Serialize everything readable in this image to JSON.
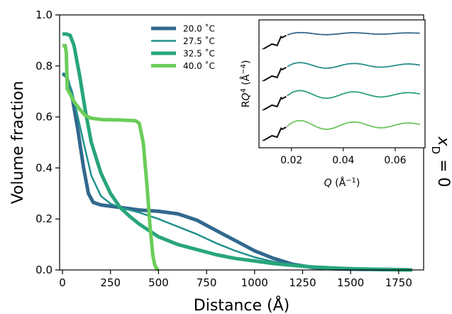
{
  "chart_data": [
    {
      "type": "line",
      "xlabel": "Distance (Å)",
      "ylabel": "Volume fraction",
      "xlim": [
        -15,
        1880
      ],
      "ylim": [
        0,
        1.0
      ],
      "xticks": [
        0,
        250,
        500,
        750,
        1000,
        1250,
        1500,
        1750
      ],
      "xtick_labels": [
        "0",
        "250",
        "500",
        "750",
        "1000",
        "1250",
        "1500",
        "1750"
      ],
      "yticks": [
        0,
        0.2,
        0.4,
        0.6,
        0.8,
        1.0
      ],
      "ytick_labels": [
        "0.0",
        "0.2",
        "0.4",
        "0.6",
        "0.8",
        "1.0"
      ],
      "legend_position": "top-center",
      "side_label": "x",
      "side_label_sub": "D",
      "side_label_value": " = 0",
      "series": [
        {
          "name": "20.0 ˚C",
          "color": "#31688e",
          "width": 5,
          "x": [
            0,
            20,
            50,
            80,
            110,
            135,
            160,
            200,
            300,
            400,
            500,
            600,
            700,
            800,
            900,
            1000,
            1100,
            1200,
            1300,
            1400,
            1500,
            1600,
            1700,
            1820
          ],
          "y": [
            0.77,
            0.76,
            0.68,
            0.55,
            0.4,
            0.3,
            0.265,
            0.255,
            0.245,
            0.235,
            0.23,
            0.22,
            0.195,
            0.155,
            0.115,
            0.075,
            0.045,
            0.022,
            0.01,
            0.005,
            0.003,
            0.002,
            0.001,
            0.0
          ]
        },
        {
          "name": "27.5 ˚C",
          "color": "#21918c",
          "width": 2.5,
          "x": [
            0,
            20,
            50,
            80,
            110,
            150,
            200,
            250,
            300,
            400,
            500,
            600,
            700,
            800,
            900,
            1000,
            1100,
            1200,
            1300,
            1400,
            1500,
            1600,
            1700,
            1820
          ],
          "y": [
            0.77,
            0.76,
            0.7,
            0.6,
            0.5,
            0.37,
            0.29,
            0.26,
            0.245,
            0.225,
            0.2,
            0.17,
            0.14,
            0.105,
            0.075,
            0.05,
            0.032,
            0.018,
            0.01,
            0.005,
            0.003,
            0.002,
            0.001,
            0.0
          ]
        },
        {
          "name": "32.5 ˚C",
          "color": "#27a57b",
          "width": 5,
          "x": [
            0,
            20,
            40,
            60,
            90,
            120,
            150,
            200,
            250,
            300,
            350,
            400,
            450,
            500,
            600,
            700,
            800,
            900,
            1000,
            1100,
            1200,
            1300,
            1400,
            1500,
            1600,
            1700,
            1820
          ],
          "y": [
            0.925,
            0.925,
            0.92,
            0.88,
            0.76,
            0.62,
            0.5,
            0.38,
            0.3,
            0.245,
            0.21,
            0.18,
            0.155,
            0.13,
            0.1,
            0.08,
            0.06,
            0.045,
            0.035,
            0.025,
            0.018,
            0.012,
            0.008,
            0.005,
            0.003,
            0.002,
            0.0
          ]
        },
        {
          "name": "40.0 ˚C",
          "color": "#6ccd5a",
          "width": 5,
          "x": [
            0,
            14,
            20,
            25,
            40,
            60,
            90,
            120,
            150,
            200,
            300,
            380,
            400,
            420,
            440,
            455,
            470,
            480,
            490,
            500
          ],
          "y": [
            0.88,
            0.88,
            0.85,
            0.71,
            0.69,
            0.66,
            0.63,
            0.605,
            0.595,
            0.59,
            0.588,
            0.585,
            0.575,
            0.5,
            0.33,
            0.18,
            0.06,
            0.02,
            0.005,
            0.0
          ]
        }
      ]
    },
    {
      "type": "line",
      "xlabel_italic": "Q",
      "xlabel_rest": " (Å",
      "xlabel_sup": "−1",
      "xlabel_close": ")",
      "ylabel_base": "R",
      "ylabel_italic": "Q",
      "ylabel_sup": "4",
      "ylabel_paren_open": " (Å",
      "ylabel_sup2": "−4",
      "ylabel_paren_close": ")",
      "xlim": [
        0.0075,
        0.0715
      ],
      "xticks": [
        0.02,
        0.04,
        0.06
      ],
      "xtick_labels": [
        "0.02",
        "0.04",
        "0.06"
      ],
      "yticks": [],
      "series": [
        {
          "name": "20.0 ˚C fit",
          "color": "#31688e",
          "offset": 0
        },
        {
          "name": "27.5 ˚C fit",
          "color": "#21918c",
          "offset": 1
        },
        {
          "name": "32.5 ˚C fit",
          "color": "#27a57b",
          "offset": 2
        },
        {
          "name": "40.0 ˚C fit",
          "color": "#6ccd5a",
          "offset": 3
        }
      ]
    }
  ]
}
